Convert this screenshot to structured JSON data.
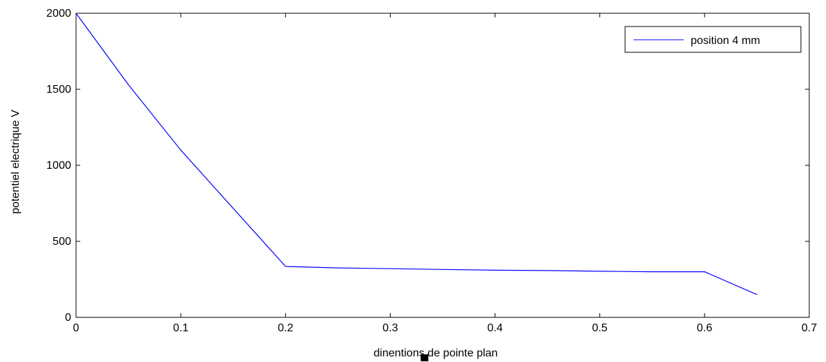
{
  "chart_data": {
    "type": "line",
    "title": "",
    "xlabel": "dinentions de pointe plan",
    "ylabel": "potentiel electrique V",
    "xlim": [
      0,
      0.7
    ],
    "ylim": [
      0,
      2000
    ],
    "xticks": [
      0,
      0.1,
      0.2,
      0.3,
      0.4,
      0.5,
      0.6,
      0.7
    ],
    "xtick_labels": [
      "0",
      "0.1",
      "0.2",
      "0.3",
      "0.4",
      "0.5",
      "0.6",
      "0.7"
    ],
    "yticks": [
      0,
      500,
      1000,
      1500,
      2000
    ],
    "ytick_labels": [
      "0",
      "500",
      "1000",
      "1500",
      "2000"
    ],
    "grid": false,
    "legend_position": "top-right",
    "series": [
      {
        "name": "position 4 mm",
        "color": "#0000ff",
        "x": [
          0,
          0.05,
          0.1,
          0.2,
          0.25,
          0.3,
          0.35,
          0.4,
          0.45,
          0.5,
          0.55,
          0.6,
          0.65
        ],
        "y": [
          2000,
          1530,
          1100,
          335,
          325,
          320,
          315,
          310,
          308,
          303,
          300,
          300,
          150
        ]
      }
    ]
  }
}
